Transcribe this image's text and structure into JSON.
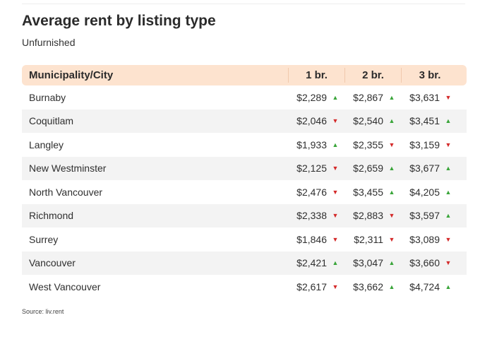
{
  "title": "Average rent by listing type",
  "subtitle": "Unfurnished",
  "colors": {
    "header_bg": "#fde3cf",
    "up": "#3aa53a",
    "down": "#d42a2a",
    "row_alt": "#f3f3f3"
  },
  "table": {
    "headers": [
      "Municipality/City",
      "1 br.",
      "2 br.",
      "3 br."
    ],
    "rows": [
      {
        "city": "Burnaby",
        "values": [
          {
            "price": "$2,289",
            "trend": "up"
          },
          {
            "price": "$2,867",
            "trend": "up"
          },
          {
            "price": "$3,631",
            "trend": "down"
          }
        ]
      },
      {
        "city": "Coquitlam",
        "values": [
          {
            "price": "$2,046",
            "trend": "down"
          },
          {
            "price": "$2,540",
            "trend": "up"
          },
          {
            "price": "$3,451",
            "trend": "up"
          }
        ]
      },
      {
        "city": "Langley",
        "values": [
          {
            "price": "$1,933",
            "trend": "up"
          },
          {
            "price": "$2,355",
            "trend": "down"
          },
          {
            "price": "$3,159",
            "trend": "down"
          }
        ]
      },
      {
        "city": "New Westminster",
        "values": [
          {
            "price": "$2,125",
            "trend": "down"
          },
          {
            "price": "$2,659",
            "trend": "up"
          },
          {
            "price": "$3,677",
            "trend": "up"
          }
        ]
      },
      {
        "city": "North Vancouver",
        "values": [
          {
            "price": "$2,476",
            "trend": "down"
          },
          {
            "price": "$3,455",
            "trend": "up"
          },
          {
            "price": "$4,205",
            "trend": "up"
          }
        ]
      },
      {
        "city": "Richmond",
        "values": [
          {
            "price": "$2,338",
            "trend": "down"
          },
          {
            "price": "$2,883",
            "trend": "down"
          },
          {
            "price": "$3,597",
            "trend": "up"
          }
        ]
      },
      {
        "city": "Surrey",
        "values": [
          {
            "price": "$1,846",
            "trend": "down"
          },
          {
            "price": "$2,311",
            "trend": "down"
          },
          {
            "price": "$3,089",
            "trend": "down"
          }
        ]
      },
      {
        "city": "Vancouver",
        "values": [
          {
            "price": "$2,421",
            "trend": "up"
          },
          {
            "price": "$3,047",
            "trend": "up"
          },
          {
            "price": "$3,660",
            "trend": "down"
          }
        ]
      },
      {
        "city": "West Vancouver",
        "values": [
          {
            "price": "$2,617",
            "trend": "down"
          },
          {
            "price": "$3,662",
            "trend": "up"
          },
          {
            "price": "$4,724",
            "trend": "up"
          }
        ]
      }
    ]
  },
  "source": "Source: liv.rent"
}
